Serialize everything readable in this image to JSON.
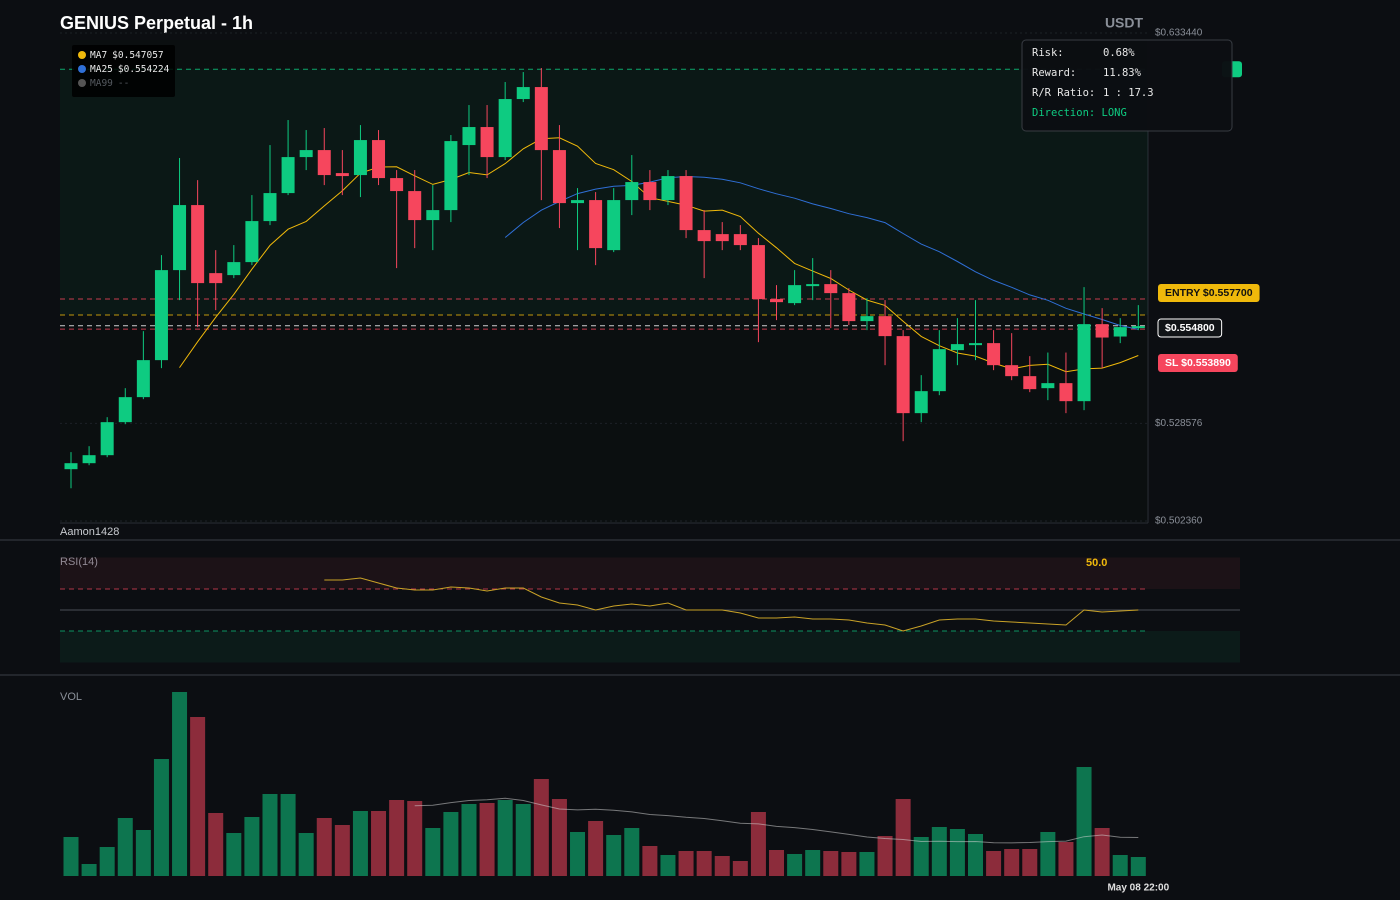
{
  "chart_data": [
    {
      "type": "candlestick",
      "title": "GENIUS Perpetual - 1h",
      "currency": "USDT",
      "watermark": "Aamon1428",
      "categories": [
        null,
        null,
        null,
        null,
        null,
        null,
        null,
        null,
        null,
        null,
        null,
        null,
        null,
        null,
        null,
        null,
        null,
        null,
        null,
        null,
        null,
        null,
        null,
        null,
        null,
        null,
        null,
        null,
        null,
        null,
        null,
        null,
        null,
        null,
        null,
        null,
        null,
        null,
        null,
        null,
        null,
        null,
        null,
        null,
        null,
        null,
        null,
        null,
        null,
        null,
        null,
        null,
        null,
        null,
        null,
        null,
        null,
        null,
        null,
        "May 08 22:00"
      ],
      "open": [
        0.51628,
        0.51789,
        0.52004,
        0.52891,
        0.53563,
        0.54557,
        0.56975,
        0.58722,
        0.56894,
        0.56841,
        0.5719,
        0.58292,
        0.59044,
        0.60011,
        0.60199,
        0.59581,
        0.59528,
        0.60468,
        0.59447,
        0.59098,
        0.58319,
        0.58587,
        0.60334,
        0.60818,
        0.60011,
        0.6157,
        0.61892,
        0.60199,
        0.58775,
        0.58856,
        0.57512,
        0.58856,
        0.5934,
        0.58856,
        0.59501,
        0.5805,
        0.57942,
        0.57942,
        0.57647,
        0.56196,
        0.56088,
        0.56545,
        0.56599,
        0.56357,
        0.55605,
        0.55739,
        0.55202,
        0.53133,
        0.53724,
        0.54825,
        0.5496,
        0.55014,
        0.54422,
        0.54127,
        0.53804,
        0.53939,
        0.53455,
        0.55524,
        0.55191,
        0.55417
      ],
      "high": [
        0.52085,
        0.52246,
        0.53025,
        0.53804,
        0.55336,
        0.57378,
        0.59985,
        0.59393,
        0.57512,
        0.57647,
        0.5899,
        0.60334,
        0.61006,
        0.60737,
        0.60791,
        0.60199,
        0.60871,
        0.60737,
        0.59662,
        0.59662,
        0.59259,
        0.60603,
        0.61409,
        0.61409,
        0.62027,
        0.62295,
        0.62403,
        0.60871,
        0.59178,
        0.59071,
        0.59178,
        0.60065,
        0.59662,
        0.59662,
        0.59662,
        0.58587,
        0.58265,
        0.58184,
        0.57835,
        0.56572,
        0.56975,
        0.57298,
        0.56975,
        0.56491,
        0.56223,
        0.56169,
        0.55363,
        0.54154,
        0.55363,
        0.55685,
        0.56169,
        0.55363,
        0.55282,
        0.54664,
        0.54761,
        0.54761,
        0.56518,
        0.55954,
        0.55685,
        0.56035
      ],
      "low": [
        0.51117,
        0.51735,
        0.5195,
        0.52837,
        0.53509,
        0.54342,
        0.56169,
        0.55444,
        0.559,
        0.5676,
        0.57109,
        0.58184,
        0.5899,
        0.59662,
        0.59259,
        0.5899,
        0.58937,
        0.59259,
        0.57029,
        0.57566,
        0.57512,
        0.58265,
        0.59528,
        0.59447,
        0.59931,
        0.61489,
        0.58856,
        0.58104,
        0.57512,
        0.57109,
        0.57459,
        0.58453,
        0.58587,
        0.58722,
        0.57835,
        0.5676,
        0.57512,
        0.57512,
        0.5504,
        0.55632,
        0.56035,
        0.56169,
        0.55417,
        0.55497,
        0.55363,
        0.54422,
        0.5238,
        0.52891,
        0.53616,
        0.54422,
        0.54557,
        0.54288,
        0.54019,
        0.53697,
        0.53482,
        0.53133,
        0.53213,
        0.54342,
        0.55014,
        0.55363
      ],
      "close": [
        0.51789,
        0.52004,
        0.52891,
        0.53563,
        0.54557,
        0.56975,
        0.58722,
        0.56626,
        0.56626,
        0.5719,
        0.58292,
        0.59044,
        0.60011,
        0.60199,
        0.59528,
        0.59501,
        0.60468,
        0.59447,
        0.59098,
        0.58319,
        0.58587,
        0.60441,
        0.60818,
        0.60011,
        0.6157,
        0.61892,
        0.60199,
        0.58775,
        0.58856,
        0.57566,
        0.58856,
        0.5934,
        0.58856,
        0.59501,
        0.5805,
        0.57754,
        0.57754,
        0.57647,
        0.56196,
        0.56115,
        0.56572,
        0.56599,
        0.56357,
        0.55605,
        0.55739,
        0.55202,
        0.53133,
        0.53724,
        0.54852,
        0.54987,
        0.55014,
        0.54422,
        0.54127,
        0.53778,
        0.53939,
        0.53455,
        0.55524,
        0.55164,
        0.55444,
        0.5547
      ],
      "up_color": "#0ecb81",
      "down_color": "#f6465d",
      "ylim": [
        0.50236,
        0.63344
      ],
      "yticks": [
        {
          "value": 0.50236,
          "label": "$0.502360"
        },
        {
          "value": 0.528576,
          "label": "$0.528576"
        },
        {
          "value": 0.63344,
          "label": "$0.633440"
        }
      ],
      "indicators": [
        {
          "name": "MA7",
          "period": 7,
          "value_label": "$0.547057",
          "color": "#f0b90b"
        },
        {
          "name": "MA25",
          "period": 25,
          "value_label": "$0.554224",
          "color": "#2f6fd6"
        },
        {
          "name": "MA99",
          "period": 99,
          "value_label": "--",
          "color": "#555555"
        }
      ],
      "levels": [
        {
          "value": 0.5577,
          "label": "ENTRY $0.557700",
          "color": "#f0b90b"
        },
        {
          "value": 0.5548,
          "label": "$0.554800",
          "color": "#ffffff"
        },
        {
          "value": 0.55389,
          "label": "SL $0.553890",
          "color": "#f6465d"
        },
        {
          "value": 0.6237,
          "color": "#0ecb81"
        },
        {
          "value": 0.562,
          "color": "#f6465d"
        }
      ],
      "position": {
        "rows": [
          [
            "Risk:",
            "0.68%"
          ],
          [
            "Reward:",
            "11.83%"
          ],
          [
            "R/R Ratio:",
            "1 : 17.3"
          ]
        ],
        "direction": "Direction: LONG"
      }
    },
    {
      "type": "rsi",
      "title": "RSI(14)",
      "color": "#c9a227",
      "values": [
        null,
        null,
        null,
        null,
        null,
        null,
        null,
        null,
        null,
        null,
        null,
        null,
        null,
        null,
        78.6,
        78.6,
        80.5,
        75.7,
        71.0,
        69.0,
        69.0,
        71.9,
        71.0,
        68.1,
        71.0,
        71.0,
        62.4,
        56.7,
        54.8,
        50.0,
        53.8,
        55.7,
        53.8,
        56.7,
        50.0,
        50.0,
        50.0,
        47.1,
        42.4,
        42.4,
        43.3,
        41.4,
        41.4,
        40.5,
        37.6,
        35.7,
        30.0,
        34.8,
        40.5,
        41.4,
        41.4,
        39.5,
        38.6,
        37.6,
        36.7,
        35.7,
        50.0,
        48.1,
        49.0,
        50.0
      ],
      "current": {
        "value": 50,
        "label": "50.0"
      },
      "ylim": [
        0,
        100
      ],
      "levels": [
        30,
        50,
        70
      ]
    },
    {
      "type": "volume",
      "title": "VOL",
      "values": [
        39,
        12,
        29,
        58,
        46,
        117,
        184,
        159,
        63,
        43,
        59,
        82,
        82,
        43,
        58,
        51,
        65,
        65,
        76,
        75,
        48,
        64,
        72,
        73,
        76,
        72,
        97,
        77,
        44,
        55,
        41,
        48,
        30,
        21,
        25,
        25,
        20,
        15,
        64,
        26,
        22,
        26,
        25,
        24,
        24,
        40,
        77,
        39,
        49,
        47,
        42,
        25,
        27,
        27,
        44,
        34,
        109,
        48,
        21,
        19
      ],
      "ylim": [
        0,
        186
      ]
    }
  ]
}
